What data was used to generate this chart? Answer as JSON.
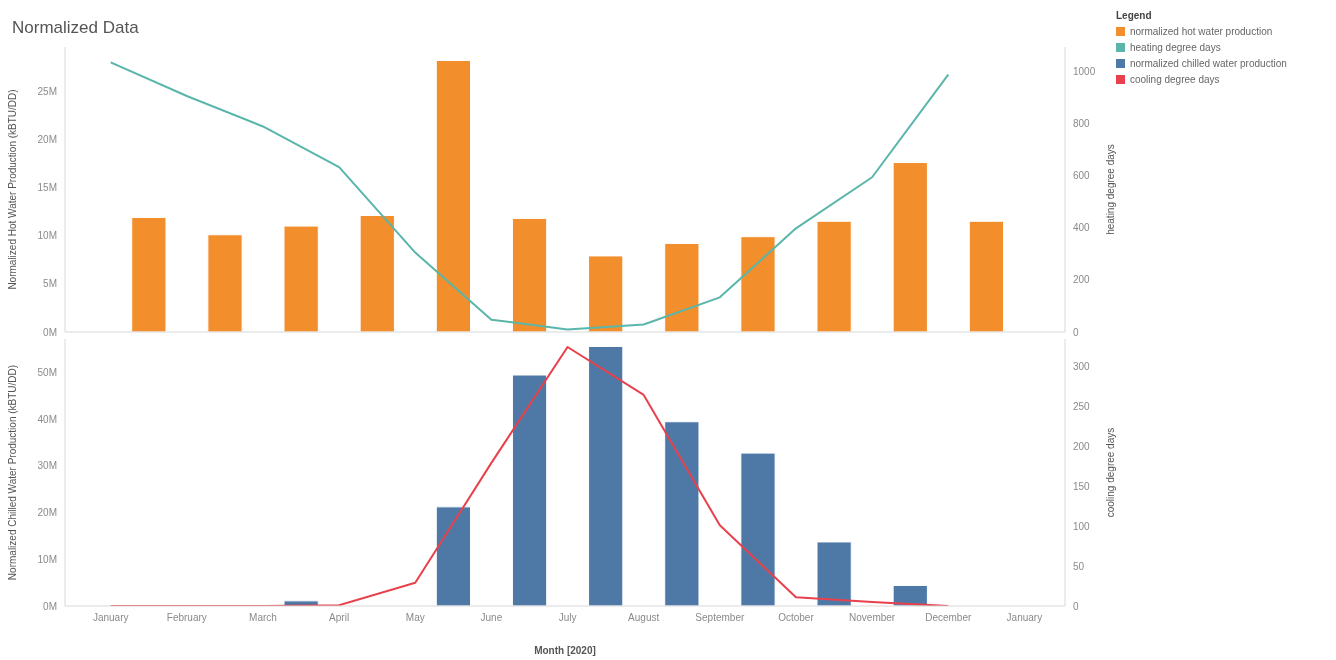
{
  "chart_data": [
    {
      "type": "bar",
      "title": "Normalized Data",
      "legend": "top right",
      "legend_title": "Legend",
      "tick_labels": "y",
      "xlim": [
        "2019-12-13",
        "2021-01-17"
      ],
      "ylabel": "Normalized Hot Water Production (kBTU/DD)",
      "ylim": [
        0,
        29600000
      ],
      "yticks": [
        {
          "value": 0,
          "label": "0M"
        },
        {
          "value": 5000000,
          "label": "5M"
        },
        {
          "value": 10000000,
          "label": "10M"
        },
        {
          "value": 15000000,
          "label": "15M"
        },
        {
          "value": 20000000,
          "label": "20M"
        },
        {
          "value": 25000000,
          "label": "25M"
        }
      ],
      "y2label": "heating degree days",
      "y2lim": [
        0,
        1094
      ],
      "y2ticks": [
        0,
        200,
        400,
        600,
        800,
        1000
      ],
      "series": [
        {
          "name": "normalized hot water production",
          "color": "#f28e2b",
          "x": [
            "2020-01-16",
            "2020-02-16",
            "2020-03-16",
            "2020-04-16",
            "2020-05-16",
            "2020-06-16",
            "2020-07-16",
            "2020-08-16",
            "2020-09-16",
            "2020-10-16",
            "2020-11-16",
            "2020-12-16"
          ],
          "values": [
            11900000,
            10100000,
            11000000,
            12100000,
            28200000,
            11800000,
            7900000,
            9200000,
            9900000,
            11500000,
            17600000,
            11500000
          ]
        },
        {
          "name": "heating degree days",
          "type": "line",
          "axis": "y2",
          "color": "#5ab5ab",
          "x": [
            "2020-01",
            "2020-02",
            "2020-03",
            "2020-04",
            "2020-05",
            "2020-06",
            "2020-07",
            "2020-08",
            "2020-09",
            "2020-10",
            "2020-11",
            "2020-12"
          ],
          "values": [
            1035,
            906,
            789,
            633,
            305,
            47,
            10,
            29,
            133,
            398,
            594,
            988
          ]
        }
      ]
    },
    {
      "type": "bar",
      "legend": "top right",
      "xlabel": "Month [2020]",
      "xlim": [
        "2019-12-13",
        "2021-01-17"
      ],
      "xticks": [
        {
          "value": "2020-01",
          "label": "January"
        },
        {
          "value": "2020-02",
          "label": "February"
        },
        {
          "value": "2020-03",
          "label": "March"
        },
        {
          "value": "2020-04",
          "label": "April"
        },
        {
          "value": "2020-05",
          "label": "May"
        },
        {
          "value": "2020-06",
          "label": "June"
        },
        {
          "value": "2020-07",
          "label": "July"
        },
        {
          "value": "2020-08",
          "label": "August"
        },
        {
          "value": "2020-09",
          "label": "September"
        },
        {
          "value": "2020-10",
          "label": "October"
        },
        {
          "value": "2020-11",
          "label": "November"
        },
        {
          "value": "2020-12",
          "label": "December"
        },
        {
          "value": "2021-01",
          "label": "January"
        }
      ],
      "ylabel": "Normalized Chilled Water Production (kBTU/DD)",
      "ylim": [
        0,
        57100000
      ],
      "yticks": [
        {
          "value": 0,
          "label": "0M"
        },
        {
          "value": 10000000,
          "label": "10M"
        },
        {
          "value": 20000000,
          "label": "20M"
        },
        {
          "value": 30000000,
          "label": "30M"
        },
        {
          "value": 40000000,
          "label": "40M"
        },
        {
          "value": 50000000,
          "label": "50M"
        }
      ],
      "y2label": "cooling degree days",
      "y2lim": [
        0,
        334
      ],
      "y2ticks": [
        0,
        50,
        100,
        150,
        200,
        250,
        300
      ],
      "series": [
        {
          "name": "normalized chilled water production",
          "color": "#4e79a7",
          "x": [
            "2020-01-16",
            "2020-02-16",
            "2020-03-16",
            "2020-04-16",
            "2020-05-16",
            "2020-06-16",
            "2020-07-16",
            "2020-08-16",
            "2020-09-16",
            "2020-10-16",
            "2020-11-16",
            "2020-12-16"
          ],
          "values": [
            0,
            0,
            1100000,
            0,
            21200000,
            49400000,
            55500000,
            39400000,
            32700000,
            13700000,
            4400000,
            0
          ]
        },
        {
          "name": "cooling degree days",
          "type": "line",
          "axis": "y2",
          "color": "#e8414b",
          "x": [
            "2020-01",
            "2020-02",
            "2020-03",
            "2020-04",
            "2020-05",
            "2020-06",
            "2020-07",
            "2020-08",
            "2020-09",
            "2020-10",
            "2020-11",
            "2020-12"
          ],
          "values": [
            0,
            0,
            0,
            1,
            29,
            179,
            324,
            264,
            101,
            11,
            5,
            0
          ]
        }
      ]
    }
  ]
}
